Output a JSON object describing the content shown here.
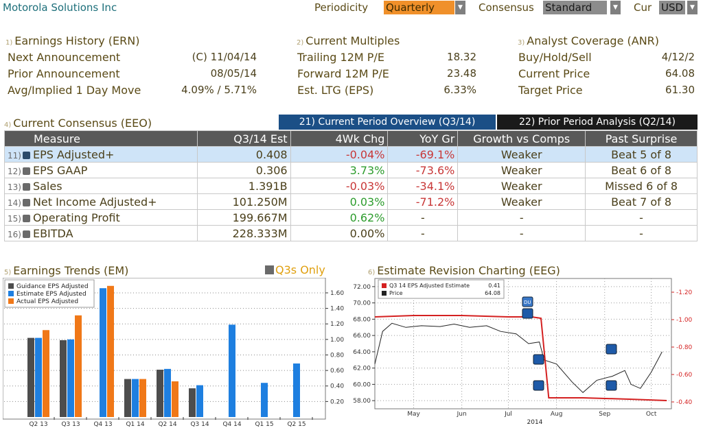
{
  "header": {
    "company": "Motorola Solutions Inc",
    "periodicity_label": "Periodicity",
    "periodicity_value": "Quarterly",
    "consensus_label": "Consensus",
    "consensus_value": "Standard",
    "currency_label": "Cur",
    "currency_value": "USD"
  },
  "earnings_history": {
    "num": "1)",
    "title": "Earnings History (ERN)",
    "rows": [
      {
        "label": "Next Announcement",
        "value": "(C)  11/04/14"
      },
      {
        "label": "Prior Announcement",
        "value": "08/05/14"
      },
      {
        "label": "Avg/Implied 1 Day Move",
        "value": "4.09% / 5.71%"
      }
    ]
  },
  "current_multiples": {
    "num": "2)",
    "title": "Current Multiples",
    "rows": [
      {
        "label": "Trailing 12M P/E",
        "value": "18.32"
      },
      {
        "label": "Forward 12M P/E",
        "value": "23.48"
      },
      {
        "label": "Est. LTG (EPS)",
        "value": "6.33%"
      }
    ]
  },
  "analyst_coverage": {
    "num": "3)",
    "title": "Analyst Coverage (ANR)",
    "rows": [
      {
        "label": "Buy/Hold/Sell",
        "value": "4/12/2"
      },
      {
        "label": "Current Price",
        "value": "64.08"
      },
      {
        "label": "Target Price",
        "value": "61.30"
      }
    ]
  },
  "consensus": {
    "num": "4)",
    "title": "Current Consensus (EEO)",
    "tab_current": "21) Current Period Overview (Q3/14)",
    "tab_prior": "22) Prior Period Analysis (Q2/14)",
    "columns": [
      "Measure",
      "Q3/14 Est",
      "4Wk Chg",
      "YoY Gr",
      "Growth vs Comps",
      "Past Surprise"
    ],
    "rows": [
      {
        "num": "11)",
        "measure": "EPS Adjusted+",
        "est": "0.408",
        "chg": "-0.04%",
        "yoy": "-69.1%",
        "comps": "Weaker",
        "surprise": "Beat 5 of 8"
      },
      {
        "num": "12)",
        "measure": "EPS GAAP",
        "est": "0.306",
        "chg": "3.73%",
        "yoy": "-73.6%",
        "comps": "Weaker",
        "surprise": "Beat 6 of 8"
      },
      {
        "num": "13)",
        "measure": "Sales",
        "est": "1.391B",
        "chg": "-0.03%",
        "yoy": "-34.1%",
        "comps": "Weaker",
        "surprise": "Missed 6 of 8"
      },
      {
        "num": "14)",
        "measure": "Net Income Adjusted+",
        "est": "101.250M",
        "chg": "0.03%",
        "yoy": "-71.2%",
        "comps": "Weaker",
        "surprise": "Beat 7 of 8"
      },
      {
        "num": "15)",
        "measure": "Operating Profit",
        "est": "199.667M",
        "chg": "0.62%",
        "yoy": "-",
        "comps": "-",
        "surprise": "-"
      },
      {
        "num": "16)",
        "measure": "EBITDA",
        "est": "228.333M",
        "chg": "0.00%",
        "yoy": "-",
        "comps": "-",
        "surprise": "-"
      }
    ]
  },
  "earnings_trends": {
    "num": "5)",
    "title": "Earnings Trends (EM)",
    "q3s_only": "Q3s Only"
  },
  "estimate_revision": {
    "num": "6)",
    "title": "Estimate Revision Charting (EEG)",
    "legend_est_label": "Q3 14 EPS Adjusted Estimate",
    "legend_est_value": "0.41",
    "legend_price_label": "Price",
    "legend_price_value": "64.08",
    "marker_label": "DU"
  },
  "colors": {
    "guidance": "#4d4d4d",
    "estimate": "#1e7fe0",
    "actual": "#f07818",
    "price": "#222222",
    "est_line": "#d42020"
  },
  "chart_data": [
    {
      "type": "bar",
      "categories": [
        "Q2 13",
        "Q3 13",
        "Q4 13",
        "Q1 14",
        "Q2 14",
        "Q3 14",
        "Q4 14",
        "Q1 15",
        "Q2 15"
      ],
      "series": [
        {
          "name": "Guidance EPS Adjusted",
          "values": [
            1.02,
            0.99,
            null,
            0.49,
            0.61,
            0.37,
            null,
            null,
            null
          ]
        },
        {
          "name": "Estimate EPS Adjusted",
          "values": [
            1.02,
            1.0,
            1.66,
            0.49,
            0.62,
            0.41,
            1.19,
            0.44,
            0.69
          ]
        },
        {
          "name": "Actual EPS Adjusted",
          "values": [
            1.12,
            1.31,
            1.69,
            0.49,
            0.46,
            null,
            null,
            null,
            null
          ]
        }
      ],
      "ylim": [
        0,
        1.75
      ],
      "yticks": [
        "0.20",
        "0.40",
        "0.60",
        "0.80",
        "1.00",
        "1.20",
        "1.40",
        "1.60"
      ],
      "legend": "top-left"
    },
    {
      "type": "line",
      "x_labels": [
        "May",
        "Jun",
        "Jul",
        "Aug",
        "Sep",
        "Oct"
      ],
      "x_year": "2014",
      "left_ticks": [
        "58.00",
        "60.00",
        "62.00",
        "64.00",
        "66.00",
        "68.00",
        "70.00",
        "72.00"
      ],
      "right_ticks": [
        "0.40",
        "0.60",
        "0.80",
        "1.00",
        "1.20"
      ],
      "series": [
        {
          "name": "Q3 14 EPS Adjusted Estimate",
          "axis": "right",
          "x": [
            "2014-04-20",
            "2014-05-15",
            "2014-06-15",
            "2014-07-15",
            "2014-07-30",
            "2014-08-05",
            "2014-08-10",
            "2014-09-01",
            "2014-10-01",
            "2014-10-25"
          ],
          "y": [
            1.02,
            1.03,
            1.03,
            1.02,
            1.02,
            1.01,
            0.43,
            0.43,
            0.42,
            0.41
          ]
        },
        {
          "name": "Price",
          "axis": "left",
          "x": [
            "2014-04-20",
            "2014-04-25",
            "2014-05-01",
            "2014-05-10",
            "2014-05-20",
            "2014-06-01",
            "2014-06-10",
            "2014-06-20",
            "2014-07-01",
            "2014-07-10",
            "2014-07-20",
            "2014-07-28",
            "2014-08-04",
            "2014-08-07",
            "2014-08-15",
            "2014-08-25",
            "2014-09-01",
            "2014-09-10",
            "2014-09-20",
            "2014-09-28",
            "2014-10-02",
            "2014-10-08",
            "2014-10-15",
            "2014-10-22"
          ],
          "y": [
            62.5,
            66.5,
            67.5,
            67.0,
            67.2,
            67.1,
            67.4,
            67.0,
            67.2,
            66.5,
            66.2,
            65.0,
            65.2,
            63.0,
            62.5,
            60.3,
            59.0,
            60.5,
            61.0,
            61.7,
            60.0,
            59.5,
            61.5,
            64.0
          ]
        }
      ]
    }
  ]
}
